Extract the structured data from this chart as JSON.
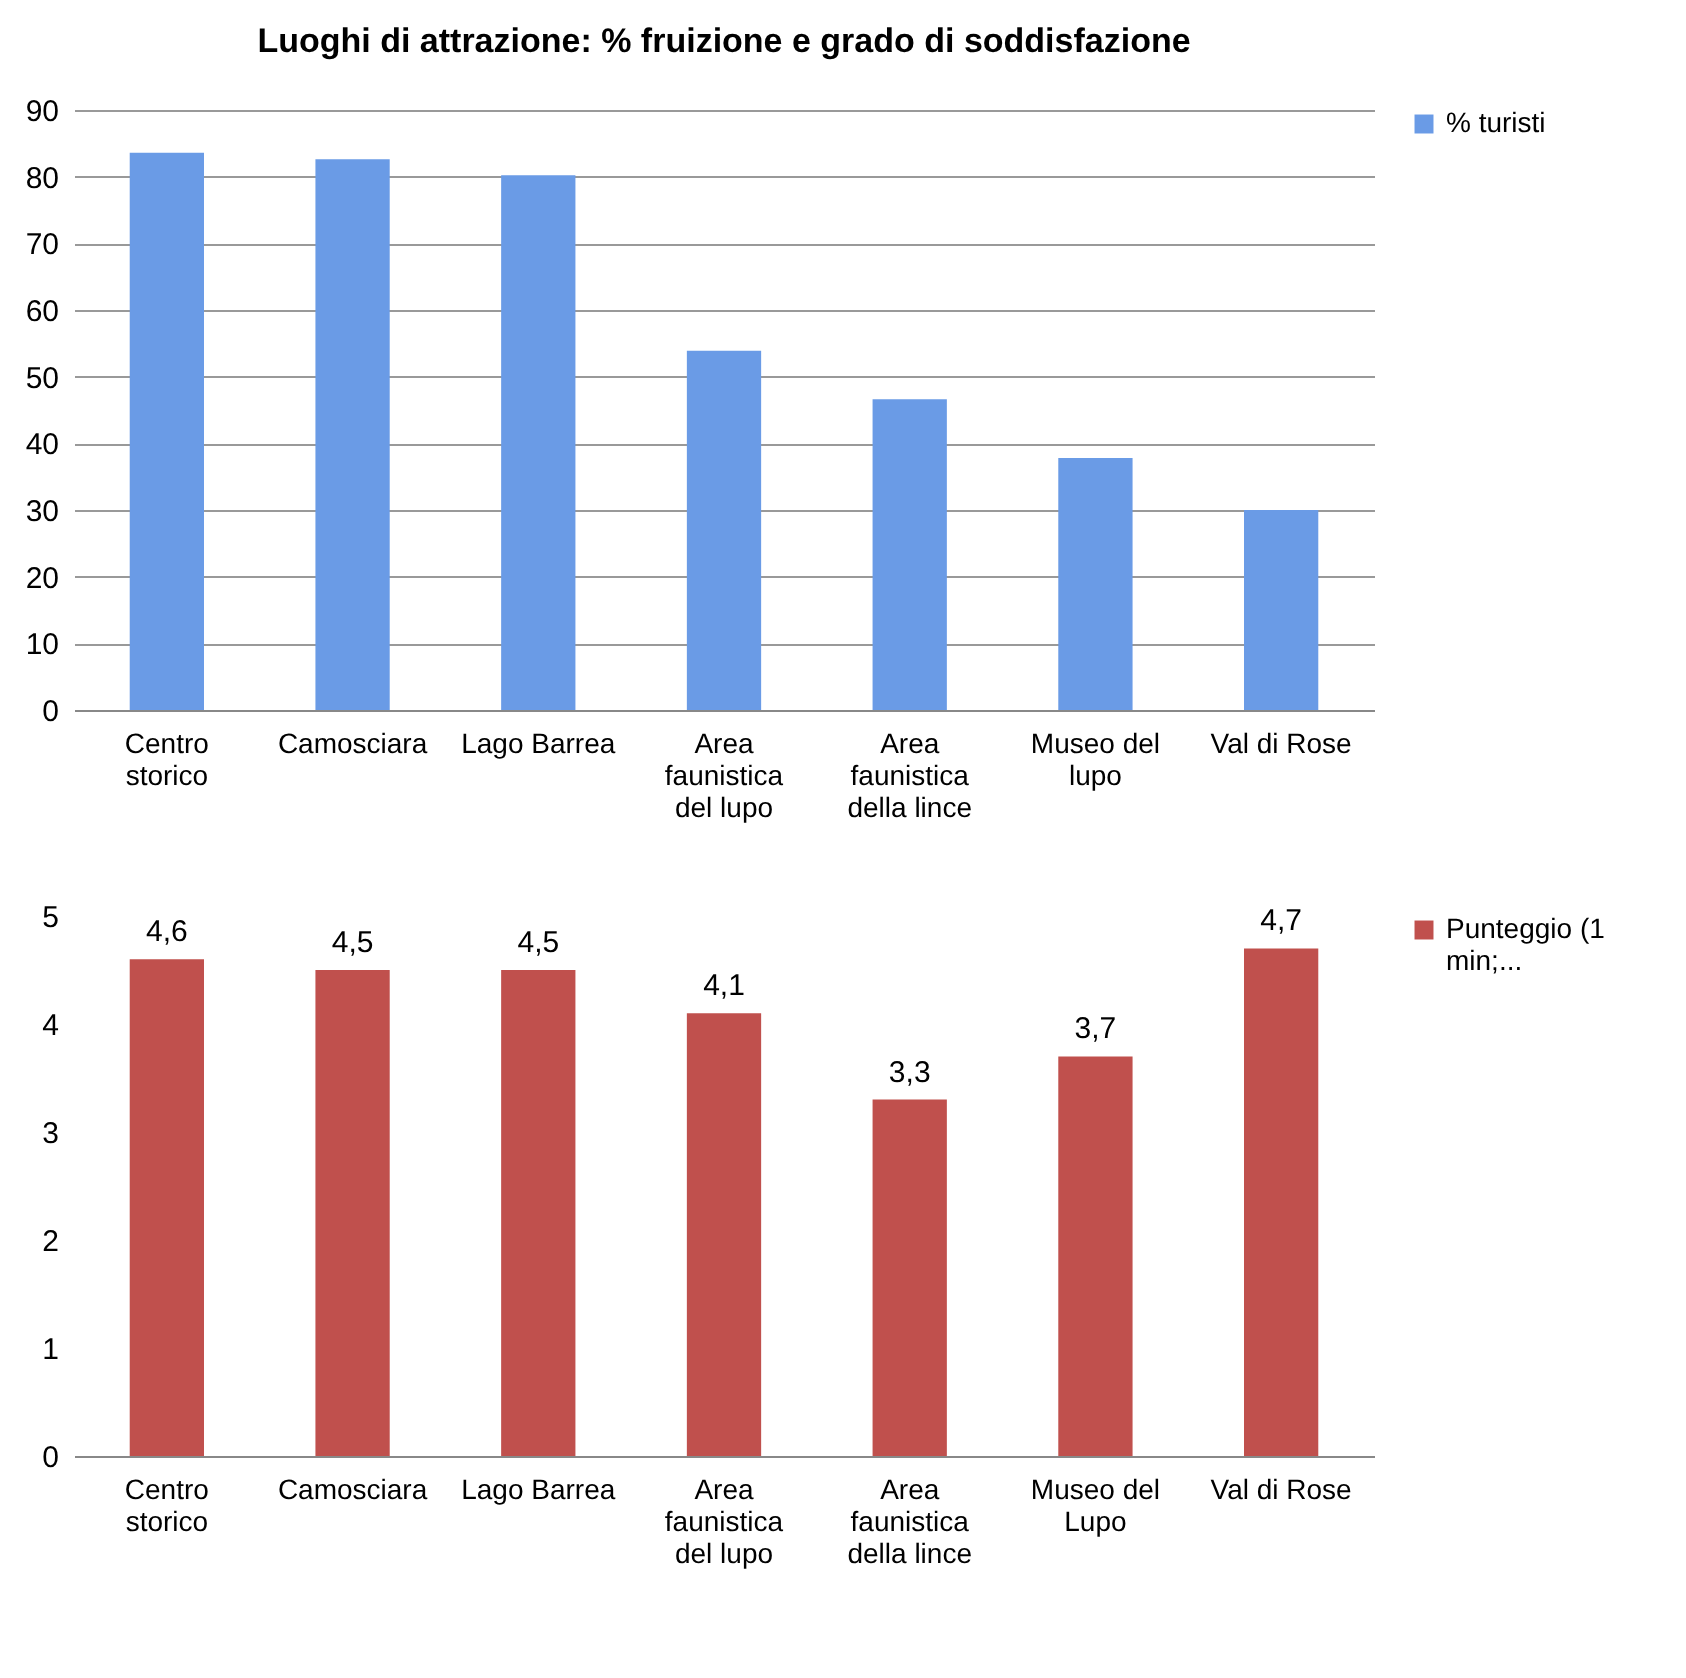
{
  "chart_data": [
    {
      "type": "bar",
      "title": "Luoghi di attrazione: % fruizione e grado di soddisfazione",
      "categories": [
        "Centro storico",
        "Camosciara",
        "Lago Barrea",
        "Area faunistica del lupo",
        "Area faunistica della lince",
        "Museo del lupo",
        "Val di Rose"
      ],
      "series": [
        {
          "name": "% turisti",
          "color": "#6a9be6",
          "values": [
            83.6,
            82.6,
            80.2,
            53.9,
            46.6,
            37.8,
            30.0
          ]
        }
      ],
      "ylim": [
        0,
        90
      ],
      "yticks": [
        0,
        10,
        20,
        30,
        40,
        50,
        60,
        70,
        80,
        90
      ],
      "grid": "y",
      "legend": "right"
    },
    {
      "type": "bar",
      "categories": [
        "Centro storico",
        "Camosciara",
        "Lago Barrea",
        "Area faunistica del lupo",
        "Area faunistica della lince",
        "Museo del Lupo",
        "Val di Rose"
      ],
      "series": [
        {
          "name": "Punteggio (1 min;...",
          "color": "#c0504d",
          "values": [
            4.6,
            4.5,
            4.5,
            4.1,
            3.3,
            3.7,
            4.7
          ],
          "value_labels": [
            "4,6",
            "4,5",
            "4,5",
            "4,1",
            "3,3",
            "3,7",
            "4,7"
          ]
        }
      ],
      "ylim": [
        0,
        5
      ],
      "yticks": [
        0,
        1,
        2,
        3,
        4,
        5
      ],
      "legend": "right"
    }
  ]
}
